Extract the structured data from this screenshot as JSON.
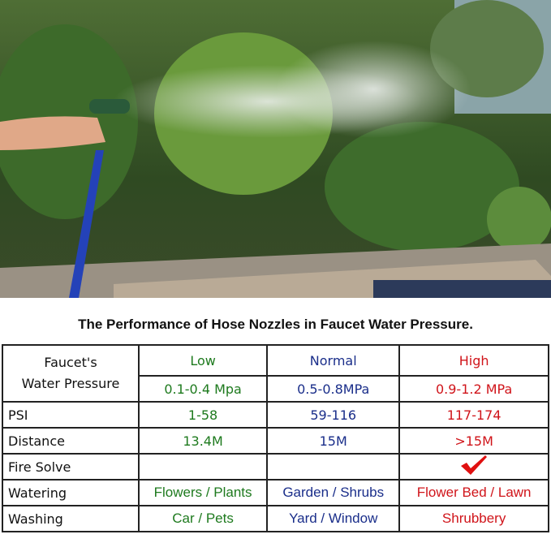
{
  "title": "The Performance of Hose Nozzles in Faucet Water Pressure.",
  "photo": {
    "description_icon": "garden-hose-spray-photo"
  },
  "table": {
    "row_header_pressure": "Faucet's\nWater Pressure",
    "columns": [
      {
        "level": "Low",
        "mpa": "0.1-0.4 Mpa",
        "psi": "1-58",
        "distance": "13.4M",
        "fire_solve": "",
        "watering": "Flowers / Plants",
        "washing": "Car / Pets",
        "color": "#1e7a1e"
      },
      {
        "level": "Normal",
        "mpa": "0.5-0.8MPa",
        "psi": "59-116",
        "distance": "15M",
        "fire_solve": "",
        "watering": "Garden / Shrubs",
        "washing": "Yard / Window",
        "color": "#1a2e8a"
      },
      {
        "level": "High",
        "mpa": "0.9-1.2 MPa",
        "psi": "117-174",
        "distance": ">15M",
        "fire_solve": "check-icon",
        "watering": "Flower Bed / Lawn",
        "washing": "Shrubbery",
        "color": "#d0141a"
      }
    ],
    "labels": {
      "psi": "PSI",
      "distance": "Distance",
      "fire_solve": "Fire Solve",
      "watering": "Watering",
      "washing": "Washing"
    }
  }
}
